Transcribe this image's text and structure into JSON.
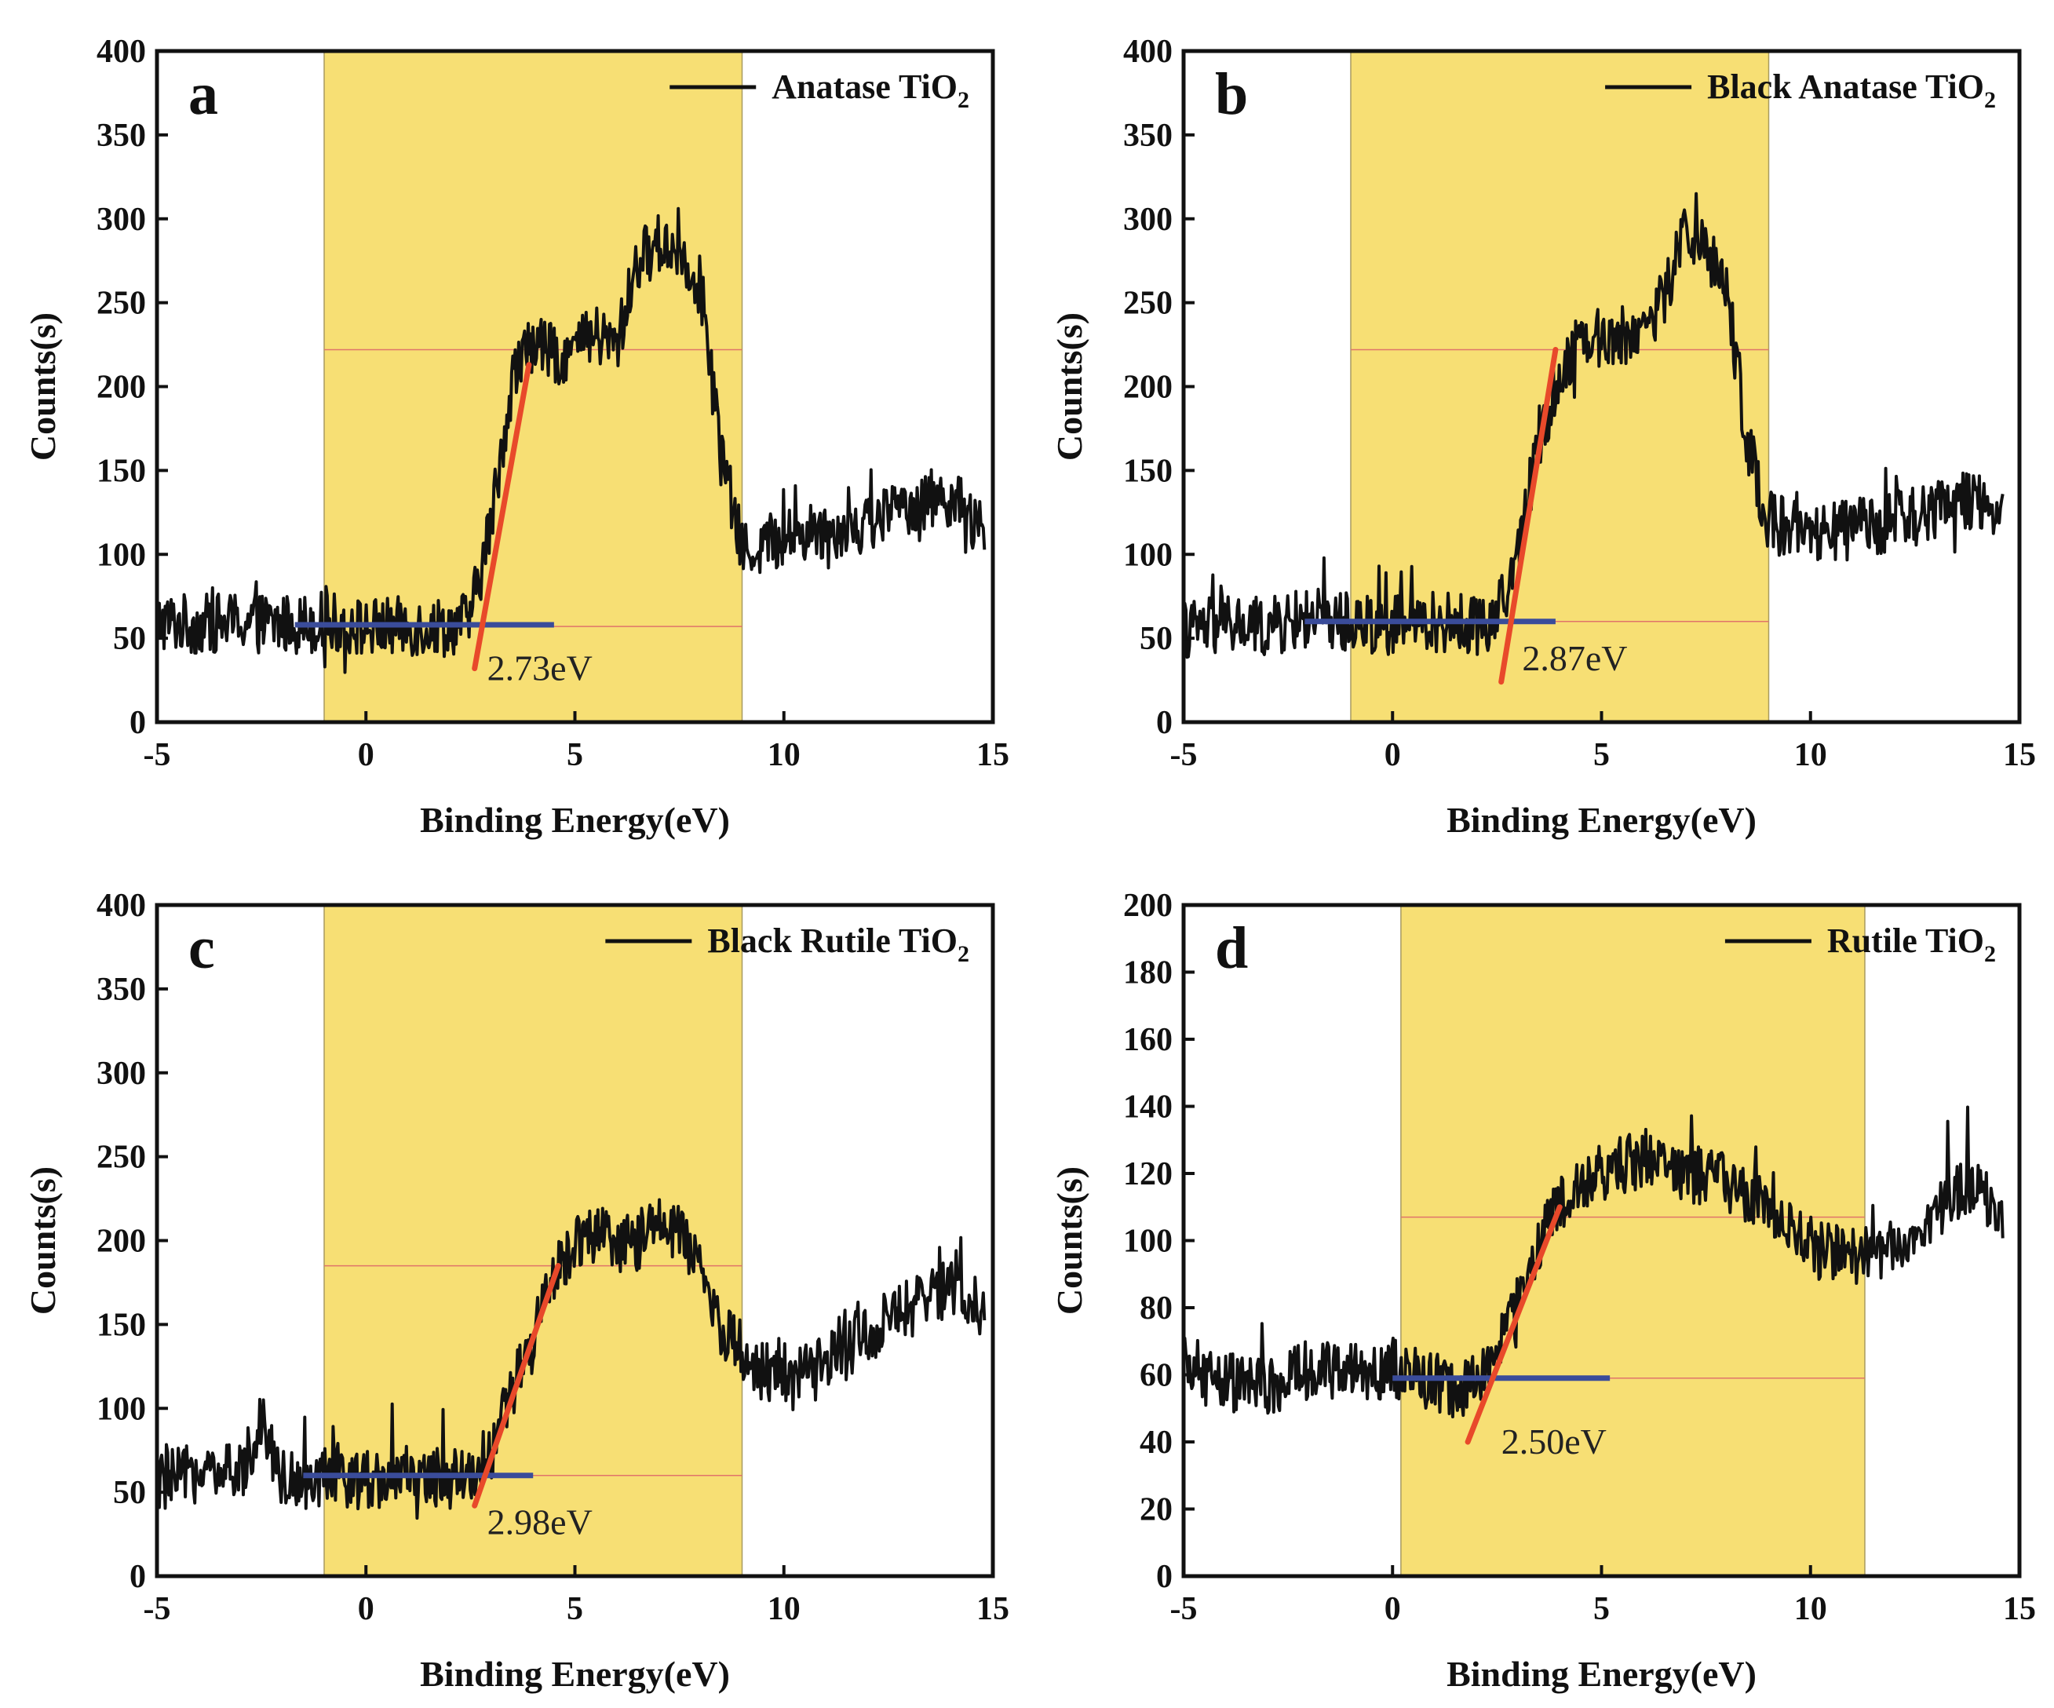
{
  "chart_data": [
    {
      "type": "line",
      "panel": "a",
      "legend": {
        "prefix": "Anatase TiO",
        "subscript": "2"
      },
      "xlabel": "Binding Energy(eV)",
      "ylabel": "Counts(s)",
      "xlim": [
        -5,
        15
      ],
      "ylim": [
        0,
        400
      ],
      "xticks": [
        "-5",
        "0",
        "5",
        "10",
        "15"
      ],
      "yticks": [
        "0",
        "50",
        "100",
        "150",
        "200",
        "250",
        "300",
        "350",
        "400"
      ],
      "shaded_region": [
        -1,
        9
      ],
      "guide_levels": [
        222,
        57
      ],
      "baseline_fit": {
        "x": [
          -1.7,
          4.5
        ],
        "y": [
          58,
          58
        ]
      },
      "edge_fit": {
        "x": [
          2.6,
          3.9
        ],
        "y": [
          32,
          213
        ]
      },
      "annotation": {
        "text": "2.73eV",
        "x": 2.9,
        "y": 32
      },
      "series": [
        {
          "name": "Anatase TiO2",
          "x": [
            -5,
            -4,
            -3,
            -2,
            -1,
            0,
            1,
            2,
            2.5,
            3,
            3.5,
            4,
            4.5,
            5,
            5.5,
            6,
            6.5,
            7,
            7.5,
            8,
            8.5,
            9,
            10,
            11,
            12,
            13,
            14,
            14.8
          ],
          "y": [
            60,
            58,
            60,
            58,
            60,
            56,
            57,
            57,
            62,
            120,
            205,
            228,
            218,
            222,
            230,
            224,
            275,
            285,
            282,
            260,
            160,
            102,
            110,
            115,
            118,
            130,
            135,
            110
          ]
        }
      ]
    },
    {
      "type": "line",
      "panel": "b",
      "legend": {
        "prefix": "Black Anatase TiO",
        "subscript": "2"
      },
      "xlabel": "Binding Energy(eV)",
      "ylabel": "Counts(s)",
      "xlim": [
        -5,
        15
      ],
      "ylim": [
        0,
        400
      ],
      "xticks": [
        "-5",
        "0",
        "5",
        "10",
        "15"
      ],
      "yticks": [
        "0",
        "50",
        "100",
        "150",
        "200",
        "250",
        "300",
        "350",
        "400"
      ],
      "shaded_region": [
        -1,
        9
      ],
      "guide_levels": [
        222,
        60
      ],
      "baseline_fit": {
        "x": [
          -2.1,
          3.9
        ],
        "y": [
          60,
          60
        ]
      },
      "edge_fit": {
        "x": [
          2.6,
          3.9
        ],
        "y": [
          24,
          222
        ]
      },
      "annotation": {
        "text": "2.87eV",
        "x": 3.1,
        "y": 38
      },
      "series": [
        {
          "name": "Black Anatase TiO2",
          "x": [
            -5,
            -4,
            -3,
            -2,
            -1,
            0,
            1,
            2,
            2.5,
            3,
            3.5,
            4,
            4.5,
            5,
            5.5,
            6,
            6.5,
            7,
            7.5,
            8,
            8.5,
            9,
            10,
            11,
            12,
            13,
            14,
            14.6
          ],
          "y": [
            55,
            58,
            56,
            62,
            60,
            58,
            60,
            58,
            62,
            100,
            170,
            205,
            232,
            228,
            230,
            235,
            252,
            295,
            282,
            258,
            165,
            120,
            110,
            115,
            120,
            125,
            135,
            120
          ]
        }
      ]
    },
    {
      "type": "line",
      "panel": "c",
      "legend": {
        "prefix": "Black Rutile TiO",
        "subscript": "2"
      },
      "xlabel": "Binding Energy(eV)",
      "ylabel": "Counts(s)",
      "xlim": [
        -5,
        15
      ],
      "ylim": [
        0,
        400
      ],
      "xticks": [
        "-5",
        "0",
        "5",
        "10",
        "15"
      ],
      "yticks": [
        "0",
        "50",
        "100",
        "150",
        "200",
        "250",
        "300",
        "350",
        "400"
      ],
      "shaded_region": [
        -1,
        9
      ],
      "guide_levels": [
        185,
        60
      ],
      "baseline_fit": {
        "x": [
          -1.5,
          4.0
        ],
        "y": [
          60,
          60
        ]
      },
      "edge_fit": {
        "x": [
          2.6,
          4.6
        ],
        "y": [
          42,
          185
        ]
      },
      "annotation": {
        "text": "2.98eV",
        "x": 2.9,
        "y": 32
      },
      "series": [
        {
          "name": "Black Rutile TiO2",
          "x": [
            -5,
            -4,
            -3,
            -2.5,
            -2,
            -1,
            0,
            1,
            2,
            2.5,
            3,
            3.5,
            4,
            4.5,
            5,
            5.5,
            6,
            6.5,
            7,
            7.5,
            8,
            8.5,
            9,
            10,
            11,
            12,
            13,
            14,
            14.8
          ],
          "y": [
            55,
            62,
            60,
            95,
            58,
            58,
            58,
            60,
            58,
            60,
            75,
            110,
            140,
            178,
            200,
            205,
            195,
            200,
            210,
            205,
            180,
            150,
            130,
            115,
            125,
            145,
            160,
            170,
            160
          ]
        }
      ]
    },
    {
      "type": "line",
      "panel": "d",
      "legend": {
        "prefix": "Rutile TiO",
        "subscript": "2"
      },
      "xlabel": "Binding Energy(eV)",
      "ylabel": "Counts(s)",
      "xlim": [
        -5,
        15
      ],
      "ylim": [
        0,
        200
      ],
      "xticks": [
        "-5",
        "0",
        "5",
        "10",
        "15"
      ],
      "yticks": [
        "0",
        "20",
        "40",
        "60",
        "80",
        "100",
        "120",
        "140",
        "160",
        "180",
        "200"
      ],
      "shaded_region": [
        0.2,
        11.3
      ],
      "guide_levels": [
        107,
        59
      ],
      "baseline_fit": {
        "x": [
          0,
          5.2
        ],
        "y": [
          59,
          59
        ]
      },
      "edge_fit": {
        "x": [
          1.8,
          4.0
        ],
        "y": [
          40,
          110
        ]
      },
      "annotation": {
        "text": "2.50eV",
        "x": 2.6,
        "y": 40
      },
      "series": [
        {
          "name": "Rutile TiO2",
          "x": [
            -5,
            -4,
            -3,
            -2,
            -1,
            0,
            1,
            1.5,
            2,
            2.5,
            3,
            3.5,
            4,
            5,
            6,
            7,
            8,
            9,
            10,
            11,
            12,
            13,
            14,
            14.6
          ],
          "y": [
            62,
            58,
            56,
            62,
            60,
            62,
            58,
            55,
            58,
            66,
            82,
            100,
            110,
            120,
            125,
            120,
            118,
            108,
            98,
            95,
            98,
            108,
            118,
            105
          ]
        }
      ]
    }
  ]
}
